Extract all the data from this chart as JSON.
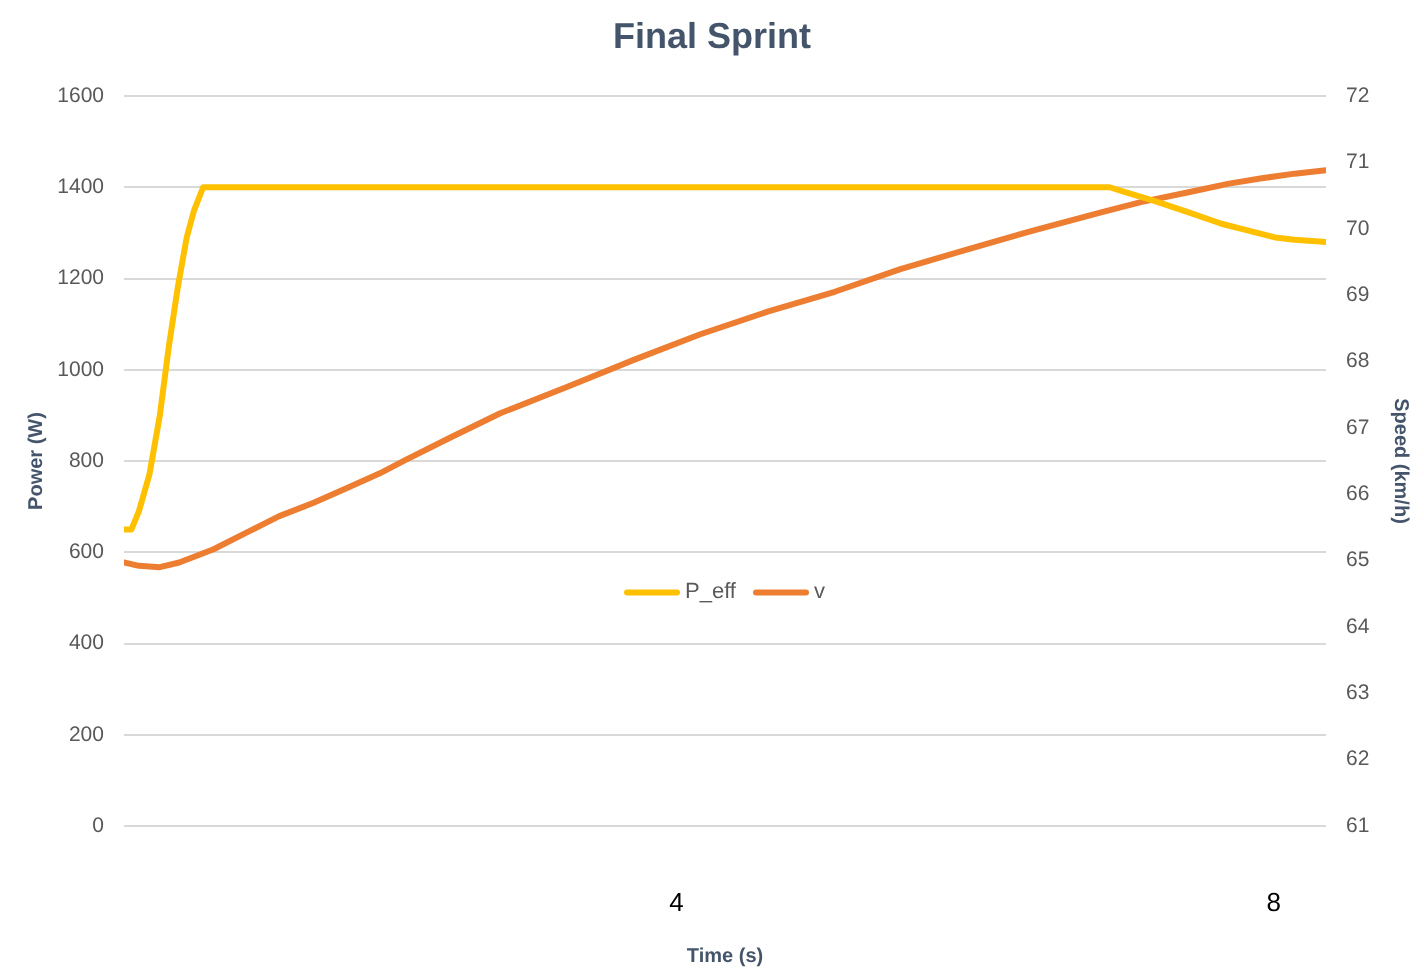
{
  "chart_data": {
    "type": "line",
    "title": "Final Sprint",
    "xlabel": "Time (s)",
    "ylabel": "Power (W)",
    "y2label": "Speed (km/h)",
    "xlim": [
      0.3,
      8.35
    ],
    "xticks": [
      4,
      8
    ],
    "ylim": [
      0,
      1600
    ],
    "yticks": [
      0,
      200,
      400,
      600,
      800,
      1000,
      1200,
      1400,
      1600
    ],
    "y2lim": [
      61,
      72
    ],
    "y2ticks": [
      61,
      62,
      63,
      64,
      65,
      66,
      67,
      68,
      69,
      70,
      71,
      72
    ],
    "grid": "y",
    "legend": "center",
    "series": [
      {
        "name": "P_eff",
        "color": "#ffc000",
        "x": [
          0.3,
          0.35,
          0.4,
          0.47,
          0.54,
          0.6,
          0.66,
          0.72,
          0.77,
          0.83,
          0.85,
          6.9,
          7.0,
          7.2,
          7.43,
          7.65,
          7.83,
          8.01,
          8.14,
          8.35
        ],
        "values": [
          650,
          650,
          690,
          770,
          900,
          1050,
          1180,
          1290,
          1350,
          1400,
          1400,
          1400,
          1390,
          1370,
          1345,
          1320,
          1305,
          1290,
          1285,
          1280
        ]
      },
      {
        "name": "v",
        "color": "#ed7d31",
        "axis": "y2",
        "x": [
          0.3,
          0.4,
          0.54,
          0.67,
          0.9,
          1.12,
          1.34,
          1.57,
          1.79,
          2.01,
          2.19,
          2.5,
          2.82,
          3.27,
          3.71,
          4.16,
          4.61,
          5.06,
          5.5,
          5.95,
          6.4,
          6.85,
          7.11,
          7.43,
          7.7,
          7.92,
          8.14,
          8.35
        ],
        "values": [
          64.97,
          64.92,
          64.9,
          64.97,
          65.17,
          65.42,
          65.67,
          65.87,
          66.09,
          66.31,
          66.52,
          66.87,
          67.22,
          67.62,
          68.02,
          68.41,
          68.75,
          69.05,
          69.39,
          69.69,
          69.98,
          70.25,
          70.4,
          70.55,
          70.68,
          70.76,
          70.83,
          70.88
        ]
      }
    ]
  }
}
